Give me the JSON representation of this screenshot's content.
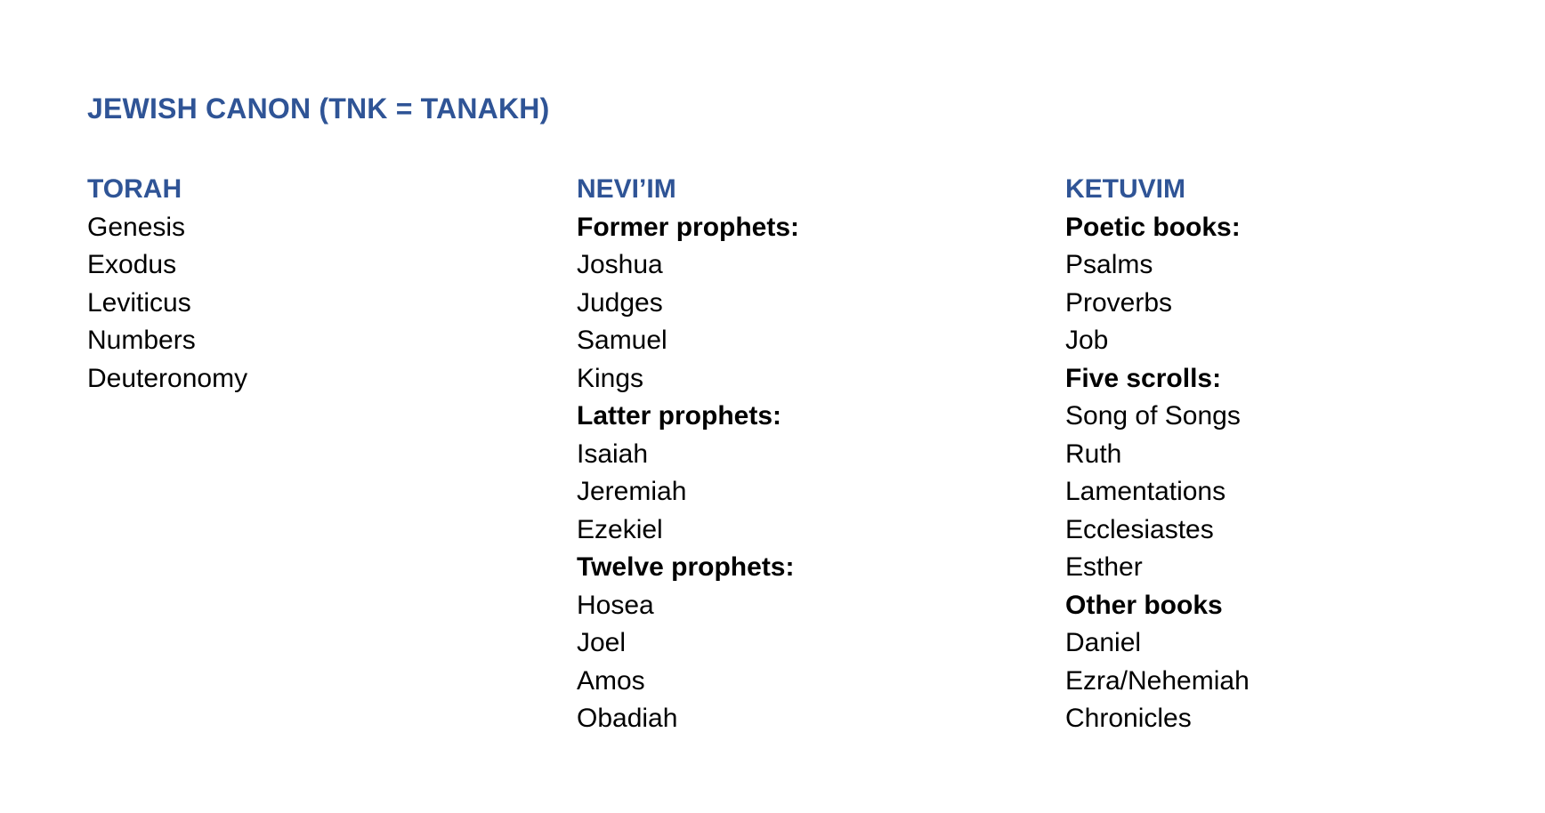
{
  "page": {
    "title": "JEWISH CANON (TNK = TANAKH)"
  },
  "colors": {
    "accent_blue": "#2F5496",
    "body_text": "#000000",
    "background": "#FFFFFF"
  },
  "columns": [
    {
      "heading": "TORAH",
      "lines": [
        {
          "text": "Genesis",
          "style": "normal"
        },
        {
          "text": "Exodus",
          "style": "normal"
        },
        {
          "text": "Leviticus",
          "style": "normal"
        },
        {
          "text": "Numbers",
          "style": "normal"
        },
        {
          "text": "Deuteronomy",
          "style": "normal"
        }
      ]
    },
    {
      "heading": "NEVI’IM",
      "lines": [
        {
          "text": "Former prophets:",
          "style": "bold"
        },
        {
          "text": "Joshua",
          "style": "normal"
        },
        {
          "text": "Judges",
          "style": "normal"
        },
        {
          "text": "Samuel",
          "style": "normal"
        },
        {
          "text": "Kings",
          "style": "normal"
        },
        {
          "text": "Latter prophets:",
          "style": "bold"
        },
        {
          "text": "Isaiah",
          "style": "normal"
        },
        {
          "text": "Jeremiah",
          "style": "normal"
        },
        {
          "text": "Ezekiel",
          "style": "normal"
        },
        {
          "text": "Twelve prophets:",
          "style": "bold"
        },
        {
          "text": "Hosea",
          "style": "normal"
        },
        {
          "text": "Joel",
          "style": "normal"
        },
        {
          "text": "Amos",
          "style": "normal"
        },
        {
          "text": "Obadiah",
          "style": "normal"
        }
      ]
    },
    {
      "heading": "KETUVIM",
      "lines": [
        {
          "text": "Poetic books:",
          "style": "bold"
        },
        {
          "text": "Psalms",
          "style": "normal"
        },
        {
          "text": "Proverbs",
          "style": "normal"
        },
        {
          "text": "Job",
          "style": "normal"
        },
        {
          "text": "Five scrolls:",
          "style": "bold"
        },
        {
          "text": "Song of Songs",
          "style": "normal"
        },
        {
          "text": "Ruth",
          "style": "normal"
        },
        {
          "text": "Lamentations",
          "style": "normal"
        },
        {
          "text": "Ecclesiastes",
          "style": "normal"
        },
        {
          "text": "Esther",
          "style": "normal"
        },
        {
          "text": "Other books",
          "style": "bold"
        },
        {
          "text": "Daniel",
          "style": "normal"
        },
        {
          "text": "Ezra/Nehemiah",
          "style": "normal"
        },
        {
          "text": "Chronicles",
          "style": "normal"
        }
      ]
    }
  ]
}
